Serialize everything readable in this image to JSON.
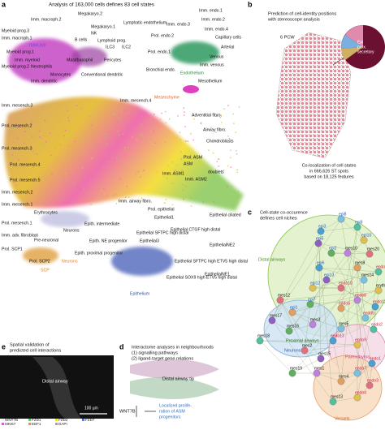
{
  "panel_a": {
    "letter": "a",
    "title": "Analysis of 163,000 cells defines 83 cell states",
    "labels": [
      "Myeloid prog.3",
      "Imm. macroph.2",
      "Megakaryo.2",
      "Imm. macroph.1",
      "IMMUNE",
      "Megakaryo.1",
      "NK",
      "B cells",
      "Lymphoid prog.",
      "ILC3",
      "ILC2",
      "Lymphatic endothelium",
      "Myeloid prog.1",
      "Imm. myeloid",
      "Mast/basophil",
      "Neutrophils",
      "Myeloid prog.2",
      "Monocytes",
      "Pericytes",
      "Conventional dendritic",
      "Imm. dendritic",
      "Imm. mesench.4",
      "Imm. mesench.3",
      "Prol. mesench.2",
      "Prol. mesench.3",
      "Prol. mesench.4",
      "Prol. mesench.5",
      "Imm. mesench.2",
      "Imm. mesench.1",
      "Prol. mesench.1",
      "Imm. adv. fibroblast",
      "Mesenchyme",
      "Prol. endo.2",
      "Endothelium",
      "Imm. endo.3",
      "Imm. endo.1",
      "Imm. endo.2",
      "Imm. endo.4",
      "Capillary cells",
      "Arterial",
      "Venous",
      "Imm. venous",
      "Bronchial endo.",
      "Prol. endo.1",
      "Mesothelium",
      "Adventitial fibro.",
      "Airway fibro.",
      "Chondroblasts",
      "doublets",
      "Prol. ASM",
      "ASM",
      "Imm. ASM1",
      "Imm. ASM2",
      "Imm. airway fibro.",
      "Prol. epithelial",
      "Erythrocytes",
      "Epith. intermediate",
      "Neurons",
      "Epith. NE progenitor",
      "Epithelial ciliated",
      "Epithelial1",
      "Pre-neuronal",
      "Prol. SCP1",
      "Prol. SCP2",
      "SCP",
      "Neurons",
      "Epith. proximal progenitor",
      "Epithelial3",
      "Epithelial SFTPC high distal",
      "Epithelial CTGF high distal",
      "EpithelialNE2",
      "EpithelialNE1",
      "Epithelial SFTPC high ETV5 high distal",
      "Epithelial SOX9 high ETV5 high distal",
      "Epithelium"
    ]
  },
  "panel_b": {
    "letter": "b",
    "title_lines": [
      "Prediction of cell-identity positions",
      "with stereoscope analysis"
    ],
    "age": "6 PCW",
    "pie_label": [
      "Epi",
      "prox.",
      "secretory"
    ],
    "caption": [
      "Co-localization of cell states",
      "in 666,626 ST spots",
      "based on 18,125 features"
    ]
  },
  "panel_c": {
    "letter": "c",
    "title_lines": [
      "Cell-state co-occurence",
      "defines cell niches"
    ],
    "regions": [
      "Distal airways",
      "Proximal airways",
      "Neurons",
      "Parenchyma",
      "Vessels"
    ],
    "nodes": [
      "epi8",
      "epi3",
      "epi9",
      "epi10",
      "mes20",
      "epi5",
      "epi2",
      "mes10",
      "mes9",
      "mes14",
      "epi6",
      "endo14",
      "epi12",
      "endo10",
      "epi13",
      "epi7",
      "endo8",
      "endo6",
      "endo5",
      "endo12",
      "endo2",
      "erythrc",
      "mes12",
      "mes17",
      "mes16",
      "mes3",
      "epi1",
      "mes5",
      "endo13",
      "mes18",
      "endo9",
      "mes2",
      "mes15",
      "mes19",
      "mes1",
      "mes4",
      "endo7",
      "endo1",
      "mes13",
      "endo4",
      "endo3"
    ]
  },
  "panel_d": {
    "letter": "d",
    "lines": [
      "Interactome analyses in neighbourhoods",
      "(1) signalling pathways",
      "(2) ligand-target gene relations"
    ],
    "tip": "Distal airway tip",
    "gene": "WNT7B",
    "result": [
      "Localized prolife-",
      "ration of ASM",
      "progenitors"
    ]
  },
  "panel_e": {
    "letter": "e",
    "title_lines": [
      "Spatial validation of",
      "predicted cell interactions"
    ],
    "inset": "Distal airway",
    "scale": "100 µm",
    "legend": [
      "WNT7B",
      "FZD1",
      "FZD2",
      "FZD7",
      "MKI67",
      "EEF1",
      "DAPI"
    ]
  }
}
